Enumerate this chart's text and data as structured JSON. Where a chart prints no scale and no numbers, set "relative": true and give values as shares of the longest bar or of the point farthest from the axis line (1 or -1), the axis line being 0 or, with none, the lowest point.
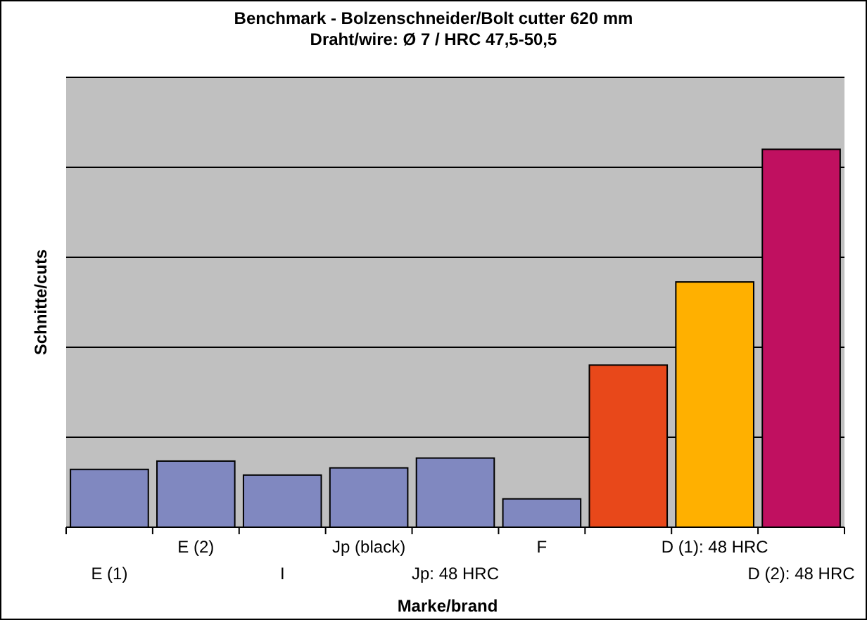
{
  "chart_data": {
    "type": "bar",
    "title": "Benchmark - Bolzenschneider/Bolt cutter 620 mm",
    "subtitle": "Draht/wire: Ø 7 / HRC 47,5-50,5",
    "xlabel": "Marke/brand",
    "ylabel": "Schnitte/cuts",
    "relative": true,
    "grid": "y",
    "categories": [
      "E (1)",
      "E (2)",
      "I",
      "Jp (black)",
      "Jp: 48 HRC",
      "F",
      null,
      "D (1): 48 HRC",
      "D (2): 48 HRC"
    ],
    "values": [
      0.153,
      0.175,
      0.138,
      0.157,
      0.183,
      0.075,
      0.429,
      0.649,
      1
    ],
    "colors": [
      "#8088c0",
      "#8088c0",
      "#8088c0",
      "#8088c0",
      "#8088c0",
      "#8088c0",
      "#e8481a",
      "#ffb000",
      "#c01060"
    ]
  }
}
